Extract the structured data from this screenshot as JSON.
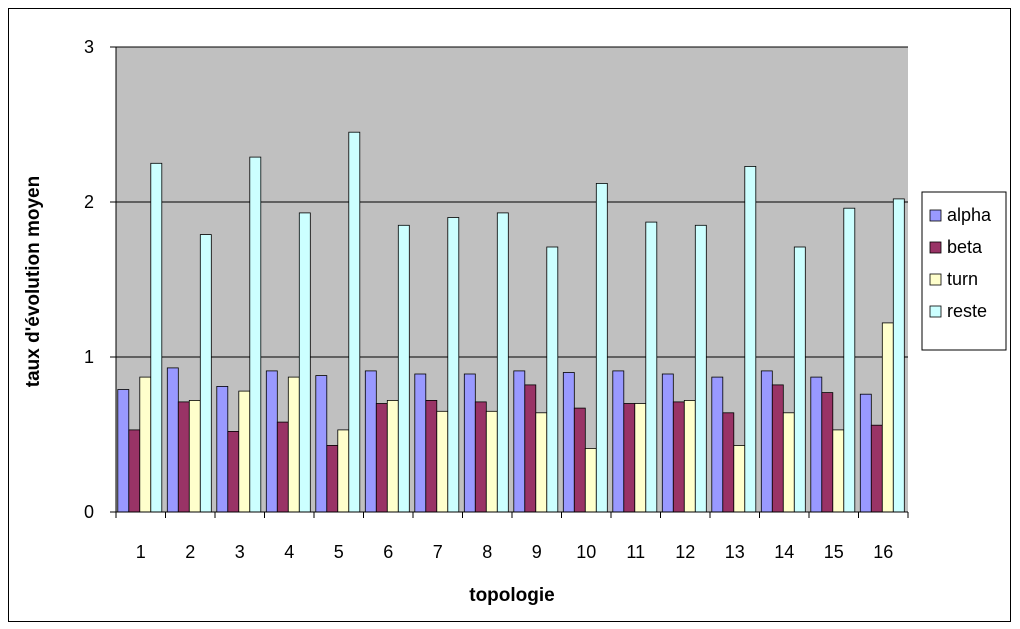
{
  "chart_data": {
    "type": "bar",
    "title": "",
    "xlabel": "topologie",
    "ylabel": "taux d'évolution moyen",
    "ylim": [
      0,
      3
    ],
    "yticks": [
      "0",
      "1",
      "2",
      "3"
    ],
    "grid": true,
    "legend_position": "right",
    "plot_background": "#c0c0c0",
    "categories": [
      "1",
      "2",
      "3",
      "4",
      "5",
      "6",
      "7",
      "8",
      "9",
      "10",
      "11",
      "12",
      "13",
      "14",
      "15",
      "16"
    ],
    "series": [
      {
        "name": "alpha",
        "color": "#9999ff",
        "values": [
          0.79,
          0.93,
          0.81,
          0.91,
          0.88,
          0.91,
          0.89,
          0.89,
          0.91,
          0.9,
          0.91,
          0.89,
          0.87,
          0.91,
          0.87,
          0.76
        ]
      },
      {
        "name": "beta",
        "color": "#993366",
        "values": [
          0.53,
          0.71,
          0.52,
          0.58,
          0.43,
          0.7,
          0.72,
          0.71,
          0.82,
          0.67,
          0.7,
          0.71,
          0.64,
          0.82,
          0.77,
          0.56
        ]
      },
      {
        "name": "turn",
        "color": "#ffffcc",
        "values": [
          0.87,
          0.72,
          0.78,
          0.87,
          0.53,
          0.72,
          0.65,
          0.65,
          0.64,
          0.41,
          0.7,
          0.72,
          0.43,
          0.64,
          0.53,
          1.22
        ]
      },
      {
        "name": "reste",
        "color": "#ccffff",
        "values": [
          2.25,
          1.79,
          2.29,
          1.93,
          2.45,
          1.85,
          1.9,
          1.93,
          1.71,
          2.12,
          1.87,
          1.85,
          2.23,
          1.71,
          1.96,
          2.02
        ]
      }
    ]
  }
}
